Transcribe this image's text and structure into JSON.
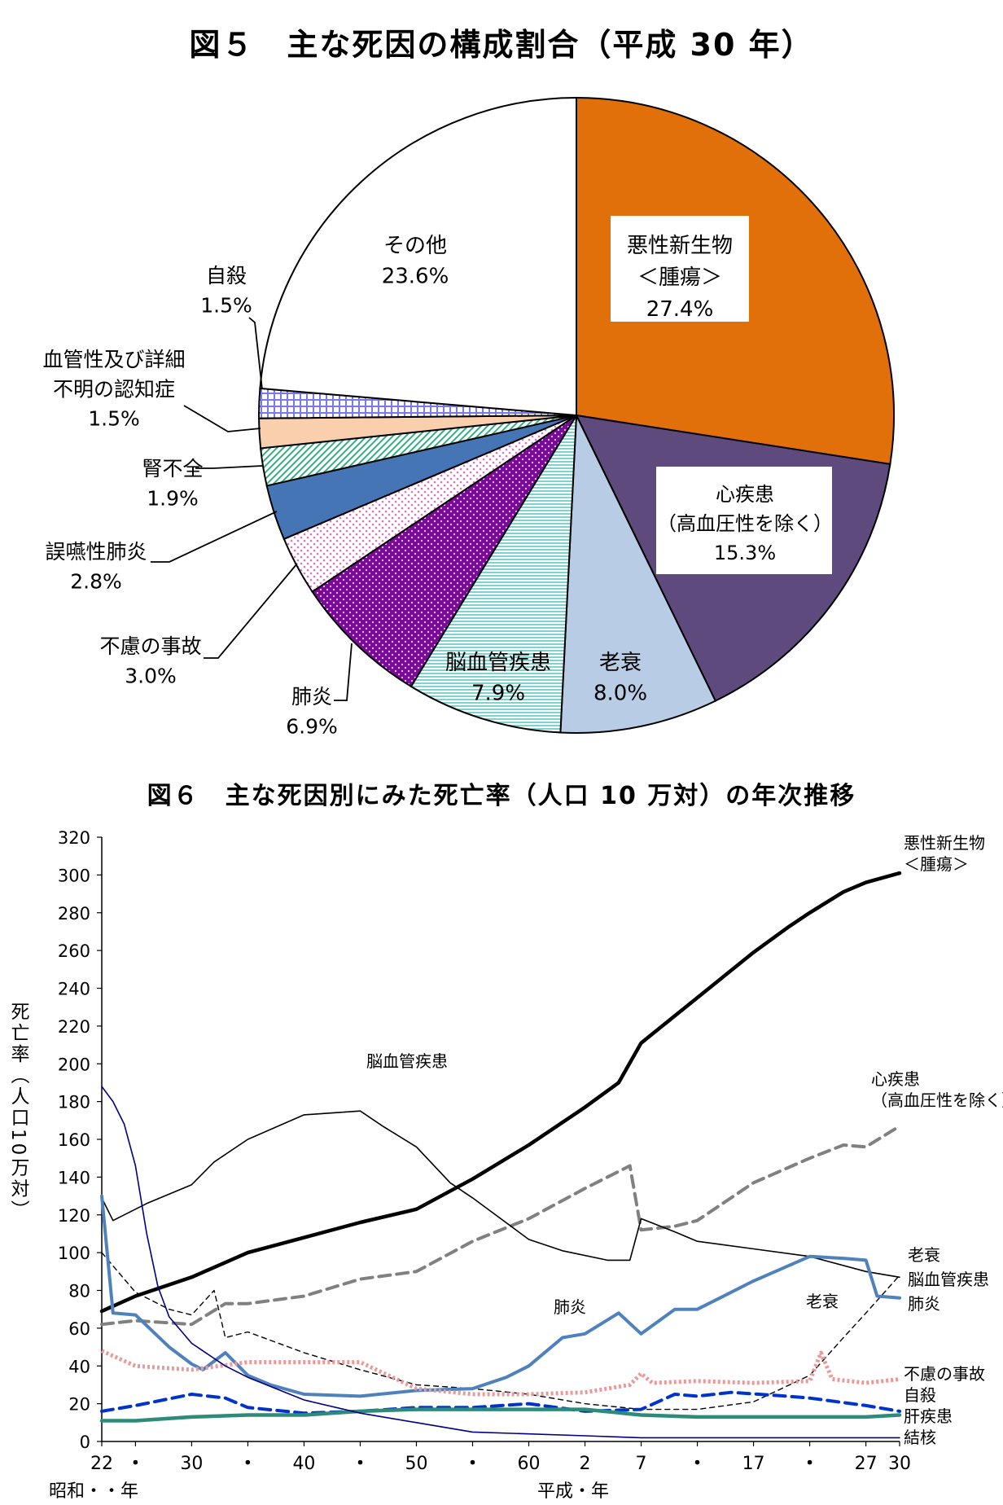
{
  "figure5": {
    "title": "図５　主な死因の構成割合（平成 30 年）"
  },
  "figure6": {
    "title": "図６　主な死因別にみた死亡率（人口 10 万対）の年次推移",
    "ylabel": "死亡率（人口10万対）",
    "era_labels": [
      "昭和・・年",
      "平成・年"
    ]
  },
  "chart_data": [
    {
      "type": "pie",
      "title": "図５　主な死因の構成割合（平成 30 年）",
      "slices": [
        {
          "label": "悪性新生物\n＜腫瘍＞",
          "value": 27.4,
          "value_label": "27.4%",
          "color": "#E2700A",
          "pattern": "solid"
        },
        {
          "label": "心疾患\n（高血圧性を除く）",
          "value": 15.3,
          "value_label": "15.3%",
          "color": "#5E4A7C",
          "pattern": "solid"
        },
        {
          "label": "老衰",
          "value": 8.0,
          "value_label": "8.0%",
          "color": "#B9CCE6",
          "pattern": "solid"
        },
        {
          "label": "脳血管疾患",
          "value": 7.9,
          "value_label": "7.9%",
          "color": "#7FD3CF",
          "pattern": "hlines"
        },
        {
          "label": "肺炎",
          "value": 6.9,
          "value_label": "6.9%",
          "color": "#7A0A9A",
          "pattern": "dots"
        },
        {
          "label": "不慮の事故",
          "value": 3.0,
          "value_label": "3.0%",
          "color": "#E36FC4",
          "pattern": "sparse-dots"
        },
        {
          "label": "誤嚥性肺炎",
          "value": 2.8,
          "value_label": "2.8%",
          "color": "#4575B5",
          "pattern": "solid"
        },
        {
          "label": "腎不全",
          "value": 1.9,
          "value_label": "1.9%",
          "color": "#3DAA80",
          "pattern": "diagonal"
        },
        {
          "label": "血管性及び詳細\n不明の認知症",
          "value": 1.5,
          "value_label": "1.5%",
          "color": "#F9CFAE",
          "pattern": "solid"
        },
        {
          "label": "自殺",
          "value": 1.5,
          "value_label": "1.5%",
          "color": "#7A7AE6",
          "pattern": "grid"
        },
        {
          "label": "その他",
          "value": 23.6,
          "value_label": "23.6%",
          "color": "#FFFFFF",
          "pattern": "solid"
        }
      ]
    },
    {
      "type": "line",
      "title": "図６　主な死因別にみた死亡率（人口 10 万対）の年次推移",
      "xlabel": "",
      "ylabel": "死亡率（人口10万対）",
      "ylim": [
        0,
        320
      ],
      "yticks": [
        0,
        20,
        40,
        60,
        80,
        100,
        120,
        140,
        160,
        180,
        200,
        220,
        240,
        260,
        280,
        300,
        320
      ],
      "x_range": [
        "昭和22",
        "平成30"
      ],
      "xtick_labels": [
        "22",
        "・",
        "30",
        "・",
        "40",
        "・",
        "50",
        "・",
        "60",
        "2",
        "7",
        "・",
        "17",
        "・",
        "27",
        "30"
      ],
      "xtick_years": [
        1947,
        1950,
        1955,
        1960,
        1965,
        1970,
        1975,
        1980,
        1985,
        1990,
        1995,
        2000,
        2005,
        2010,
        2015,
        2018
      ],
      "era_labels": [
        "昭和・・年",
        "平成・年"
      ],
      "series": [
        {
          "name": "悪性新生物\n＜腫瘍＞",
          "color": "#000000",
          "style": "solid-thick",
          "points": [
            [
              1947,
              69
            ],
            [
              1950,
              77
            ],
            [
              1955,
              87
            ],
            [
              1960,
              100
            ],
            [
              1965,
              108
            ],
            [
              1970,
              116
            ],
            [
              1975,
              123
            ],
            [
              1980,
              139
            ],
            [
              1985,
              157
            ],
            [
              1990,
              177
            ],
            [
              1993,
              190
            ],
            [
              1995,
              211
            ],
            [
              2000,
              235
            ],
            [
              2005,
              259
            ],
            [
              2008,
              272
            ],
            [
              2010,
              280
            ],
            [
              2013,
              291
            ],
            [
              2015,
              296
            ],
            [
              2018,
              301
            ]
          ]
        },
        {
          "name": "心疾患\n（高血圧性を除く）",
          "color": "#808080",
          "style": "dashed-thick",
          "points": [
            [
              1947,
              62
            ],
            [
              1950,
              64
            ],
            [
              1955,
              62
            ],
            [
              1958,
              73
            ],
            [
              1960,
              73
            ],
            [
              1965,
              77
            ],
            [
              1970,
              86
            ],
            [
              1975,
              90
            ],
            [
              1980,
              106
            ],
            [
              1985,
              118
            ],
            [
              1990,
              134
            ],
            [
              1994,
              146
            ],
            [
              1995,
              112
            ],
            [
              1998,
              114
            ],
            [
              2000,
              117
            ],
            [
              2005,
              137
            ],
            [
              2010,
              150
            ],
            [
              2013,
              157
            ],
            [
              2015,
              156
            ],
            [
              2018,
              167
            ]
          ]
        },
        {
          "name": "脳血管疾患",
          "color": "#000000",
          "style": "solid-thin",
          "points": [
            [
              1947,
              129
            ],
            [
              1948,
              117
            ],
            [
              1951,
              126
            ],
            [
              1955,
              136
            ],
            [
              1957,
              148
            ],
            [
              1960,
              160
            ],
            [
              1965,
              173
            ],
            [
              1970,
              175
            ],
            [
              1972,
              167
            ],
            [
              1975,
              156
            ],
            [
              1978,
              137
            ],
            [
              1980,
              129
            ],
            [
              1985,
              107
            ],
            [
              1988,
              101
            ],
            [
              1992,
              96
            ],
            [
              1994,
              96
            ],
            [
              1995,
              118
            ],
            [
              1998,
              111
            ],
            [
              2000,
              106
            ],
            [
              2005,
              102
            ],
            [
              2010,
              98
            ],
            [
              2015,
              90
            ],
            [
              2018,
              87
            ]
          ]
        },
        {
          "name": "老衰",
          "color": "#000000",
          "style": "dashed-thin",
          "points": [
            [
              1947,
              100
            ],
            [
              1950,
              79
            ],
            [
              1953,
              70
            ],
            [
              1955,
              67
            ],
            [
              1957,
              80
            ],
            [
              1958,
              55
            ],
            [
              1960,
              58
            ],
            [
              1965,
              47
            ],
            [
              1970,
              38
            ],
            [
              1975,
              30
            ],
            [
              1980,
              28
            ],
            [
              1985,
              25
            ],
            [
              1990,
              20
            ],
            [
              1995,
              17
            ],
            [
              2000,
              17
            ],
            [
              2005,
              21
            ],
            [
              2010,
              35
            ],
            [
              2013,
              55
            ],
            [
              2015,
              68
            ],
            [
              2018,
              88
            ]
          ]
        },
        {
          "name": "肺炎",
          "color": "#4F81BD",
          "style": "solid-medium",
          "points": [
            [
              1947,
              130
            ],
            [
              1948,
              68
            ],
            [
              1950,
              67
            ],
            [
              1953,
              50
            ],
            [
              1955,
              41
            ],
            [
              1956,
              38
            ],
            [
              1958,
              47
            ],
            [
              1960,
              35
            ],
            [
              1962,
              30
            ],
            [
              1965,
              25
            ],
            [
              1970,
              24
            ],
            [
              1975,
              27
            ],
            [
              1980,
              28
            ],
            [
              1983,
              34
            ],
            [
              1985,
              40
            ],
            [
              1988,
              55
            ],
            [
              1990,
              57
            ],
            [
              1993,
              68
            ],
            [
              1995,
              57
            ],
            [
              1998,
              70
            ],
            [
              2000,
              70
            ],
            [
              2005,
              85
            ],
            [
              2010,
              98
            ],
            [
              2013,
              97
            ],
            [
              2015,
              96
            ],
            [
              2016,
              77
            ],
            [
              2018,
              76
            ]
          ]
        },
        {
          "name": "不慮の事故",
          "color": "#E89A9A",
          "style": "dotted-thick",
          "points": [
            [
              1947,
              48
            ],
            [
              1950,
              40
            ],
            [
              1955,
              38
            ],
            [
              1960,
              42
            ],
            [
              1965,
              42
            ],
            [
              1970,
              42
            ],
            [
              1975,
              28
            ],
            [
              1980,
              25
            ],
            [
              1985,
              25
            ],
            [
              1990,
              26
            ],
            [
              1994,
              30
            ],
            [
              1995,
              36
            ],
            [
              1996,
              31
            ],
            [
              2000,
              32
            ],
            [
              2005,
              31
            ],
            [
              2010,
              32
            ],
            [
              2011,
              47
            ],
            [
              2012,
              33
            ],
            [
              2015,
              31
            ],
            [
              2018,
              33
            ]
          ]
        },
        {
          "name": "自殺",
          "color": "#0033CC",
          "style": "dashed-thick",
          "points": [
            [
              1947,
              16
            ],
            [
              1950,
              19
            ],
            [
              1955,
              25
            ],
            [
              1958,
              23
            ],
            [
              1960,
              18
            ],
            [
              1965,
              15
            ],
            [
              1970,
              16
            ],
            [
              1975,
              18
            ],
            [
              1980,
              18
            ],
            [
              1985,
              20
            ],
            [
              1990,
              16
            ],
            [
              1995,
              17
            ],
            [
              1998,
              25
            ],
            [
              2000,
              24
            ],
            [
              2003,
              26
            ],
            [
              2008,
              24
            ],
            [
              2010,
              23
            ],
            [
              2015,
              19
            ],
            [
              2018,
              16
            ]
          ]
        },
        {
          "name": "肝疾患",
          "color": "#2E8B7A",
          "style": "solid-thick",
          "points": [
            [
              1947,
              11
            ],
            [
              1950,
              11
            ],
            [
              1955,
              13
            ],
            [
              1960,
              14
            ],
            [
              1965,
              14
            ],
            [
              1970,
              16
            ],
            [
              1975,
              17
            ],
            [
              1980,
              17
            ],
            [
              1985,
              17
            ],
            [
              1990,
              17
            ],
            [
              1995,
              14
            ],
            [
              2000,
              13
            ],
            [
              2005,
              13
            ],
            [
              2010,
              13
            ],
            [
              2015,
              13
            ],
            [
              2018,
              14
            ]
          ]
        },
        {
          "name": "結核",
          "color": "#000080",
          "style": "solid-thin",
          "points": [
            [
              1947,
              188
            ],
            [
              1948,
              180
            ],
            [
              1949,
              168
            ],
            [
              1950,
              146
            ],
            [
              1951,
              110
            ],
            [
              1952,
              82
            ],
            [
              1953,
              66
            ],
            [
              1955,
              52
            ],
            [
              1958,
              40
            ],
            [
              1960,
              34
            ],
            [
              1965,
              22
            ],
            [
              1970,
              15
            ],
            [
              1975,
              10
            ],
            [
              1980,
              5
            ],
            [
              1985,
              4
            ],
            [
              1990,
              3
            ],
            [
              1995,
              2
            ],
            [
              2000,
              2
            ],
            [
              2010,
              2
            ],
            [
              2018,
              2
            ]
          ]
        }
      ]
    }
  ]
}
